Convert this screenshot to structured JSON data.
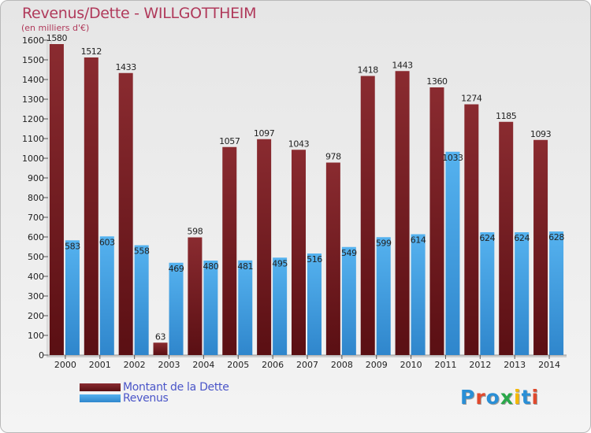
{
  "title": "Revenus/Dette - WILLGOTTHEIM",
  "subtitle": "(en milliers d'€)",
  "colors": {
    "debt": "#7a1c20",
    "revenue": "#3f9fe0",
    "title": "#b03a5b",
    "legend_text": "#4a55c8"
  },
  "legend": {
    "debt_label": "Montant de la Dette",
    "revenue_label": "Revenus"
  },
  "logo": {
    "text": "Proxiti"
  },
  "chart_data": {
    "type": "bar",
    "title": "Revenus/Dette - WILLGOTTHEIM",
    "ylabel": "(en milliers d'€)",
    "xlabel": "",
    "ylim": [
      0,
      1600
    ],
    "yticks": [
      0,
      100,
      200,
      300,
      400,
      500,
      600,
      700,
      800,
      900,
      1000,
      1100,
      1200,
      1300,
      1400,
      1500,
      1600
    ],
    "grid": false,
    "legend_position": "bottom-left",
    "categories": [
      "2000",
      "2001",
      "2002",
      "2003",
      "2004",
      "2005",
      "2006",
      "2007",
      "2008",
      "2009",
      "2010",
      "2011",
      "2012",
      "2013",
      "2014"
    ],
    "series": [
      {
        "name": "Montant de la Dette",
        "values": [
          1580,
          1512,
          1433,
          63,
          598,
          1057,
          1097,
          1043,
          978,
          1418,
          1443,
          1360,
          1274,
          1185,
          1093
        ]
      },
      {
        "name": "Revenus",
        "values": [
          583,
          603,
          558,
          469,
          480,
          481,
          495,
          516,
          549,
          599,
          614,
          1033,
          624,
          624,
          628
        ]
      }
    ]
  }
}
